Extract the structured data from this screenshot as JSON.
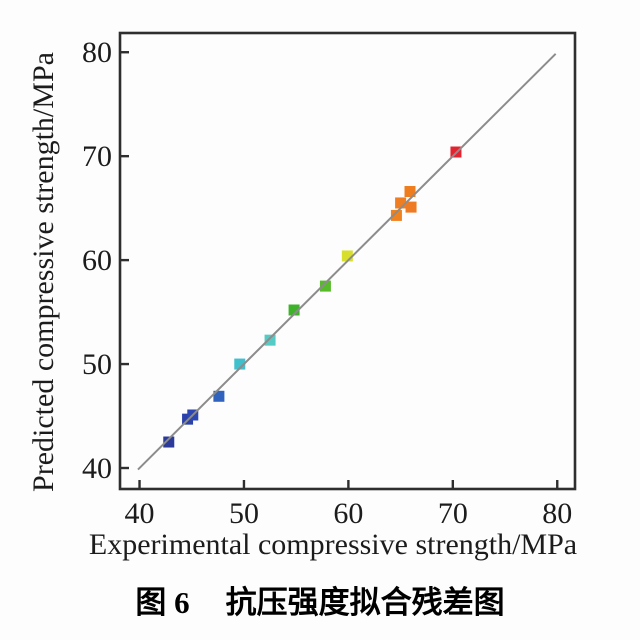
{
  "figure": {
    "caption_prefix": "图 6",
    "caption_title": "抗压强度拟合残差图"
  },
  "chart_data": {
    "type": "scatter",
    "title": "",
    "xlabel": "Experimental compressive strength/MPa",
    "ylabel": "Predicted compressive strength/MPa",
    "xlim": [
      38.13,
      81.7
    ],
    "ylim": [
      37.98,
      81.85
    ],
    "xticks": [
      40,
      50,
      60,
      70,
      80
    ],
    "yticks": [
      40,
      50,
      60,
      70,
      80
    ],
    "grid": false,
    "legend": false,
    "frame_color": "#2e2e2e",
    "identity_line": {
      "from": 39.85,
      "to": 79.85,
      "color": "#8c8c8c"
    },
    "marker": "square",
    "marker_size_px": 11,
    "series": [
      {
        "name": "compressive-strength-points",
        "points": [
          {
            "x": 42.8,
            "y": 42.5,
            "color": "#2b3a9b"
          },
          {
            "x": 44.6,
            "y": 44.7,
            "color": "#2b40a8"
          },
          {
            "x": 45.1,
            "y": 45.1,
            "color": "#2c47b1"
          },
          {
            "x": 47.6,
            "y": 46.9,
            "color": "#2f63bd"
          },
          {
            "x": 49.6,
            "y": 50.0,
            "color": "#3fc0cc"
          },
          {
            "x": 52.5,
            "y": 52.3,
            "color": "#55cbc5"
          },
          {
            "x": 54.8,
            "y": 55.2,
            "color": "#3cb329"
          },
          {
            "x": 57.8,
            "y": 57.5,
            "color": "#57bb29"
          },
          {
            "x": 59.9,
            "y": 60.4,
            "color": "#d7df2c"
          },
          {
            "x": 64.6,
            "y": 64.3,
            "color": "#f0811f"
          },
          {
            "x": 65.0,
            "y": 65.5,
            "color": "#ef7d22"
          },
          {
            "x": 66.0,
            "y": 65.1,
            "color": "#ee7a24"
          },
          {
            "x": 65.9,
            "y": 66.6,
            "color": "#ef7d1e"
          },
          {
            "x": 70.3,
            "y": 70.4,
            "color": "#e22431"
          }
        ]
      }
    ]
  }
}
